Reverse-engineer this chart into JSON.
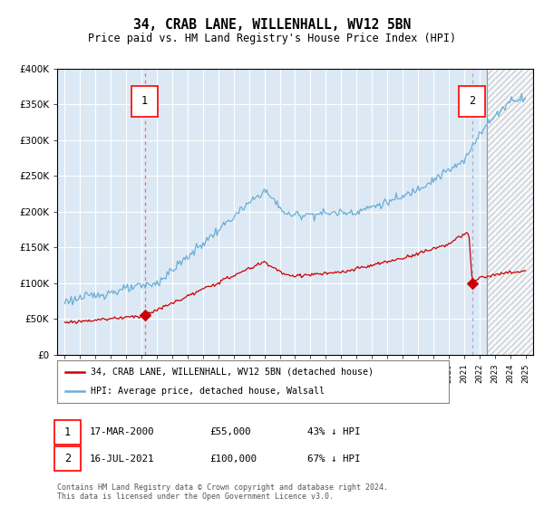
{
  "title": "34, CRAB LANE, WILLENHALL, WV12 5BN",
  "subtitle": "Price paid vs. HM Land Registry's House Price Index (HPI)",
  "legend_line1": "34, CRAB LANE, WILLENHALL, WV12 5BN (detached house)",
  "legend_line2": "HPI: Average price, detached house, Walsall",
  "annotation1_date": "17-MAR-2000",
  "annotation1_price": "£55,000",
  "annotation1_hpi": "43% ↓ HPI",
  "annotation1_year": 2000.21,
  "annotation1_value": 55000,
  "annotation2_date": "16-JUL-2021",
  "annotation2_price": "£100,000",
  "annotation2_hpi": "67% ↓ HPI",
  "annotation2_year": 2021.54,
  "annotation2_value": 100000,
  "background_color": "#dce9f5",
  "hpi_color": "#6baed6",
  "price_color": "#cc0000",
  "ylim": [
    0,
    400000
  ],
  "yticks": [
    0,
    50000,
    100000,
    150000,
    200000,
    250000,
    300000,
    350000,
    400000
  ],
  "hatch_start": 2022.5,
  "hatch_end": 2025.5,
  "xlim_left": 1994.5,
  "xlim_right": 2025.5,
  "footer": "Contains HM Land Registry data © Crown copyright and database right 2024.\nThis data is licensed under the Open Government Licence v3.0."
}
